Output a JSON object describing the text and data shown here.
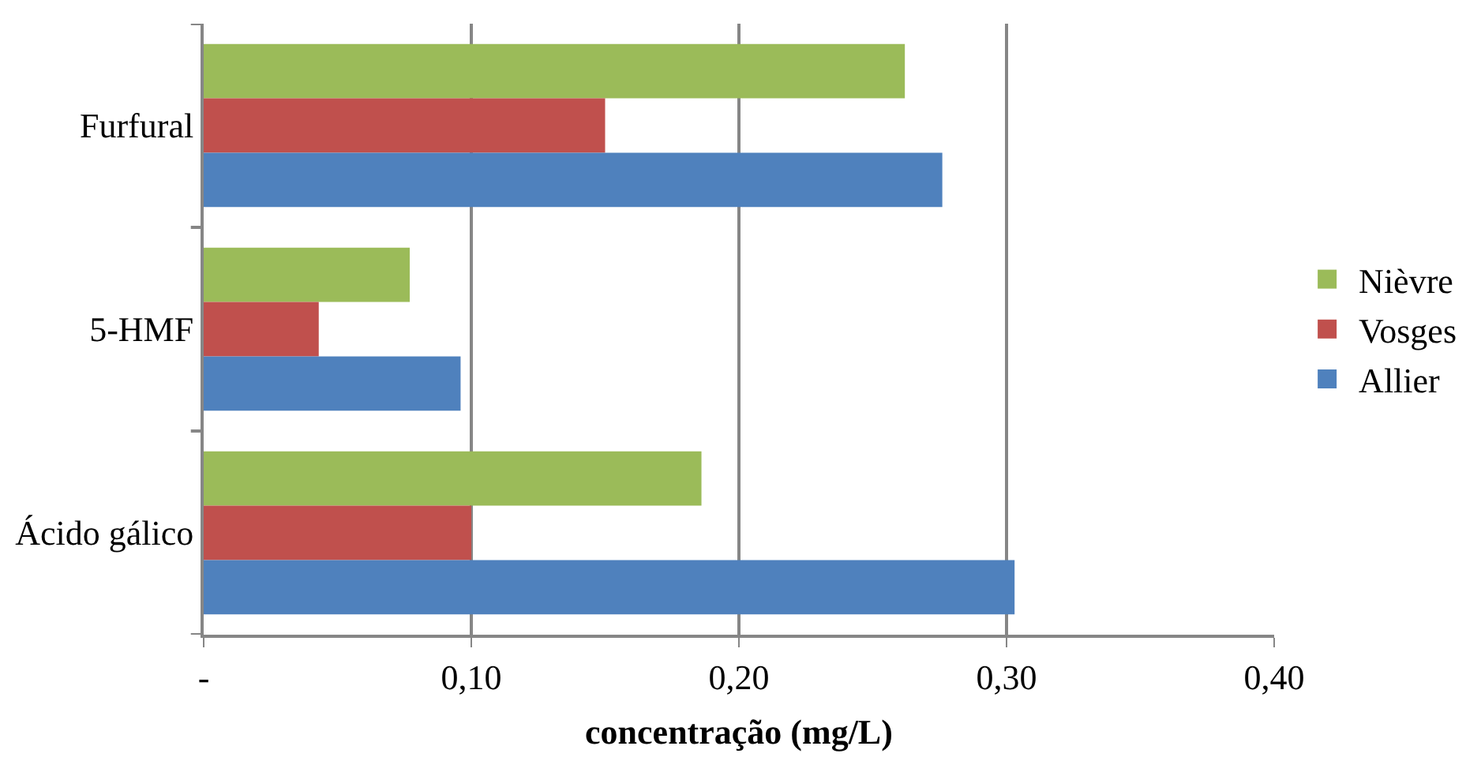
{
  "chart_data": {
    "type": "bar",
    "orientation": "horizontal",
    "xlabel": "concentração (mg/L)",
    "categories": [
      "Furfural",
      "5-HMF",
      "Ácido gálico"
    ],
    "series": [
      {
        "name": "Nièvre",
        "color": "#9bbb59",
        "values": [
          0.262,
          0.077,
          0.186
        ]
      },
      {
        "name": "Vosges",
        "color": "#c0504d",
        "values": [
          0.15,
          0.043,
          0.1
        ]
      },
      {
        "name": "Allier",
        "color": "#4f81bd",
        "values": [
          0.276,
          0.096,
          0.303
        ]
      }
    ],
    "xlim": [
      0,
      0.4
    ],
    "xticks": [
      {
        "value": 0,
        "label": "-"
      },
      {
        "value": 0.1,
        "label": "0,10"
      },
      {
        "value": 0.2,
        "label": "0,20"
      },
      {
        "value": 0.3,
        "label": "0,30"
      },
      {
        "value": 0.4,
        "label": "0,40"
      }
    ],
    "grid": "x",
    "legend": "right"
  }
}
